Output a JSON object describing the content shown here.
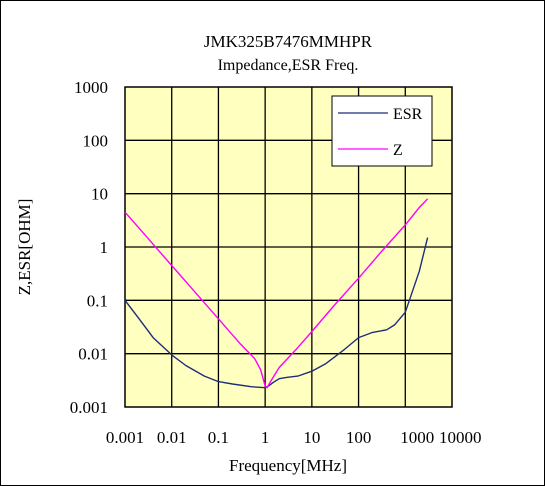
{
  "chart_data": {
    "type": "line",
    "title": "JMK325B7476MMHPR",
    "subtitle": "Impedance,ESR Freq.",
    "xlabel": "Frequency[MHz]",
    "ylabel": "Z,ESR[OHM]",
    "xscale": "log",
    "yscale": "log",
    "xlim": [
      0.001,
      10000
    ],
    "ylim": [
      0.001,
      1000
    ],
    "x_ticks": [
      "0.001",
      "0.01",
      "0.1",
      "1",
      "10",
      "100",
      "1000",
      "10000"
    ],
    "y_ticks": [
      "0.001",
      "0.01",
      "0.1",
      "1",
      "10",
      "100",
      "1000"
    ],
    "grid": true,
    "legend_position": "top-right",
    "plot_background": "#FFFFC0",
    "series": [
      {
        "name": "ESR",
        "color": "#1F2D7A",
        "x": [
          0.001,
          0.002,
          0.004,
          0.01,
          0.02,
          0.05,
          0.1,
          0.2,
          0.5,
          1.0,
          1.2,
          1.5,
          2.0,
          3.0,
          5.0,
          10,
          20,
          50,
          100,
          200,
          400,
          600,
          1000,
          2000,
          3000
        ],
        "y": [
          0.1,
          0.045,
          0.02,
          0.0095,
          0.006,
          0.0038,
          0.003,
          0.0027,
          0.0024,
          0.0023,
          0.0025,
          0.0029,
          0.0034,
          0.0036,
          0.0038,
          0.0047,
          0.0065,
          0.012,
          0.02,
          0.025,
          0.028,
          0.035,
          0.06,
          0.35,
          1.5
        ]
      },
      {
        "name": "Z",
        "color": "#FF00FF",
        "x": [
          0.001,
          0.003,
          0.01,
          0.03,
          0.1,
          0.3,
          0.6,
          0.8,
          1.0,
          1.1,
          1.3,
          2.0,
          5.0,
          10,
          30,
          100,
          300,
          1000,
          2000,
          3000
        ],
        "y": [
          4.5,
          1.5,
          0.45,
          0.15,
          0.045,
          0.015,
          0.008,
          0.005,
          0.0025,
          0.0023,
          0.003,
          0.0055,
          0.013,
          0.026,
          0.08,
          0.26,
          0.8,
          2.6,
          5.5,
          8
        ]
      }
    ]
  }
}
